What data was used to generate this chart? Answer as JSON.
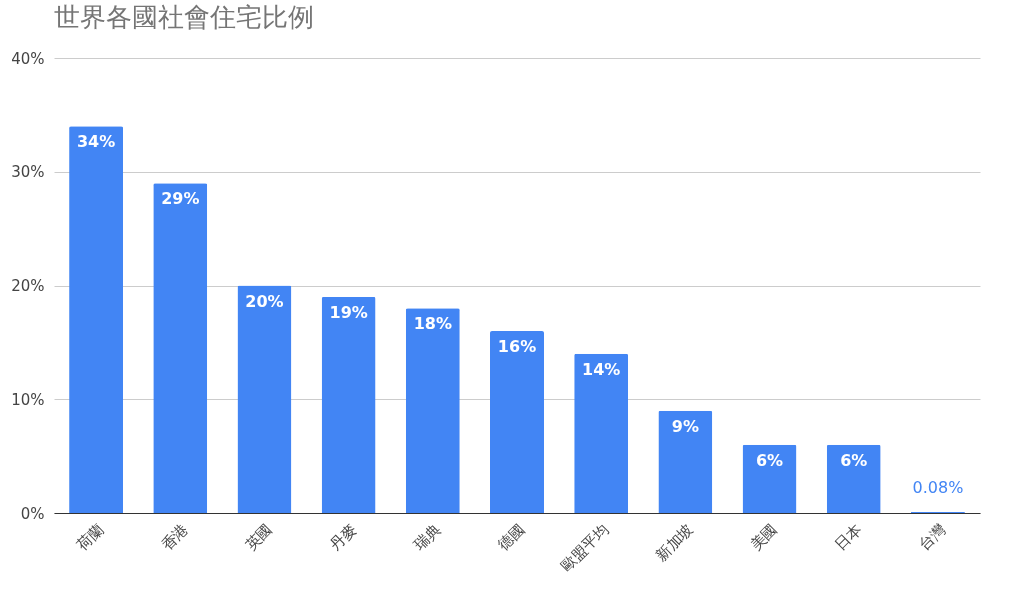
{
  "chart_data": {
    "type": "bar",
    "title": "世界各國社會住宅比例",
    "categories": [
      "荷蘭",
      "香港",
      "英國",
      "丹麥",
      "瑞典",
      "德國",
      "歐盟平均",
      "新加坡",
      "美國",
      "日本",
      "台灣"
    ],
    "values": [
      34,
      29,
      20,
      19,
      18,
      16,
      14,
      9,
      6,
      6,
      0.08
    ],
    "value_labels": [
      "34%",
      "29%",
      "20%",
      "19%",
      "18%",
      "16%",
      "14%",
      "9%",
      "6%",
      "6%",
      "0.08%"
    ],
    "color": "#4285f4",
    "ylim": [
      0,
      40
    ],
    "yticks": [
      {
        "value": 0,
        "label": "0%"
      },
      {
        "value": 10,
        "label": "10%"
      },
      {
        "value": 20,
        "label": "20%"
      },
      {
        "value": 30,
        "label": "30%"
      },
      {
        "value": 40,
        "label": "40%"
      }
    ],
    "grid": "y"
  }
}
